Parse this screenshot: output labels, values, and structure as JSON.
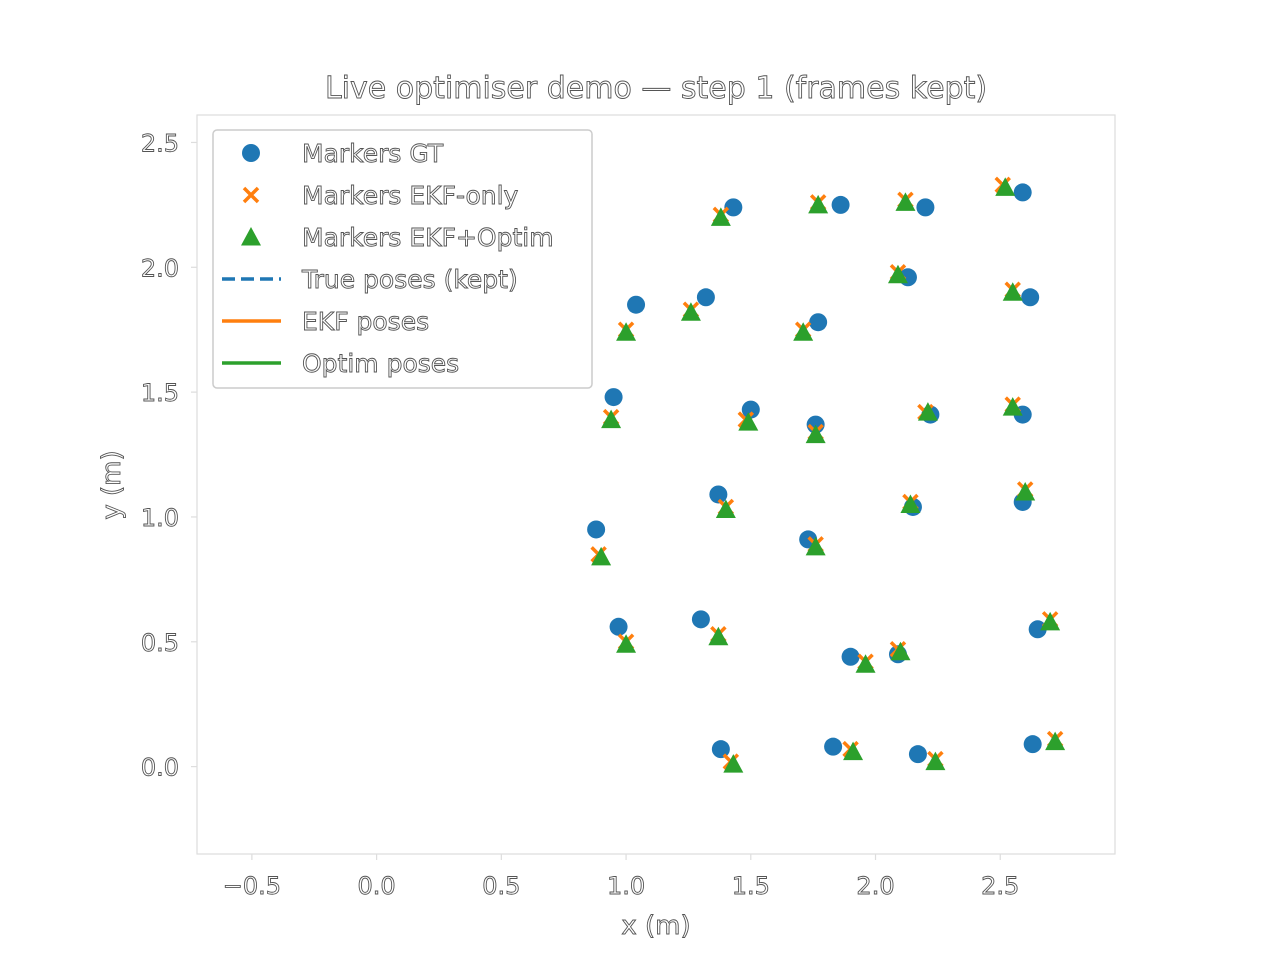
{
  "chart_data": {
    "type": "scatter",
    "title": "Live optimiser demo — step 1 (frames kept)",
    "xlabel": "x (m)",
    "ylabel": "y (m)",
    "xlim": [
      -0.72,
      2.96
    ],
    "ylim": [
      -0.35,
      2.61
    ],
    "xticks": [
      -0.5,
      0.0,
      0.5,
      1.0,
      1.5,
      2.0,
      2.5
    ],
    "xtick_labels": [
      "−0.5",
      "0.0",
      "0.5",
      "1.0",
      "1.5",
      "2.0",
      "2.5"
    ],
    "yticks": [
      0.0,
      0.5,
      1.0,
      1.5,
      2.0,
      2.5
    ],
    "ytick_labels": [
      "0.0",
      "0.5",
      "1.0",
      "1.5",
      "2.0",
      "2.5"
    ],
    "grid": false,
    "legend_position": "upper-left",
    "series": [
      {
        "name": "Markers GT",
        "marker": "circle",
        "color": "#1f77b4",
        "points": [
          [
            1.43,
            2.24
          ],
          [
            1.86,
            2.25
          ],
          [
            2.2,
            2.24
          ],
          [
            2.59,
            2.3
          ],
          [
            1.04,
            1.85
          ],
          [
            1.32,
            1.88
          ],
          [
            1.77,
            1.78
          ],
          [
            2.13,
            1.96
          ],
          [
            2.62,
            1.88
          ],
          [
            0.95,
            1.48
          ],
          [
            1.5,
            1.43
          ],
          [
            1.76,
            1.37
          ],
          [
            2.22,
            1.41
          ],
          [
            2.59,
            1.41
          ],
          [
            0.88,
            0.95
          ],
          [
            1.37,
            1.09
          ],
          [
            1.73,
            0.91
          ],
          [
            2.15,
            1.04
          ],
          [
            2.59,
            1.06
          ],
          [
            0.97,
            0.56
          ],
          [
            1.3,
            0.59
          ],
          [
            1.9,
            0.44
          ],
          [
            2.09,
            0.45
          ],
          [
            2.65,
            0.55
          ],
          [
            1.38,
            0.07
          ],
          [
            1.83,
            0.08
          ],
          [
            2.17,
            0.05
          ],
          [
            2.63,
            0.09
          ]
        ]
      },
      {
        "name": "Markers EKF-only",
        "marker": "x",
        "color": "#ff7f0e",
        "points": [
          [
            1.38,
            2.21
          ],
          [
            1.77,
            2.26
          ],
          [
            2.12,
            2.27
          ],
          [
            2.51,
            2.33
          ],
          [
            1.0,
            1.75
          ],
          [
            1.26,
            1.83
          ],
          [
            1.71,
            1.75
          ],
          [
            2.09,
            1.98
          ],
          [
            2.55,
            1.91
          ],
          [
            0.94,
            1.4
          ],
          [
            1.48,
            1.39
          ],
          [
            1.76,
            1.34
          ],
          [
            2.2,
            1.42
          ],
          [
            2.55,
            1.45
          ],
          [
            0.89,
            0.85
          ],
          [
            1.4,
            1.04
          ],
          [
            1.76,
            0.89
          ],
          [
            2.14,
            1.06
          ],
          [
            2.6,
            1.11
          ],
          [
            1.0,
            0.5
          ],
          [
            1.37,
            0.53
          ],
          [
            1.96,
            0.42
          ],
          [
            2.09,
            0.47
          ],
          [
            2.7,
            0.59
          ],
          [
            1.42,
            0.02
          ],
          [
            1.9,
            0.07
          ],
          [
            2.24,
            0.03
          ],
          [
            2.72,
            0.11
          ]
        ]
      },
      {
        "name": "Markers EKF+Optim",
        "marker": "triangle",
        "color": "#2ca02c",
        "points": [
          [
            1.38,
            2.2
          ],
          [
            1.77,
            2.25
          ],
          [
            2.12,
            2.26
          ],
          [
            2.52,
            2.32
          ],
          [
            1.0,
            1.74
          ],
          [
            1.26,
            1.82
          ],
          [
            1.71,
            1.74
          ],
          [
            2.09,
            1.97
          ],
          [
            2.55,
            1.9
          ],
          [
            0.94,
            1.39
          ],
          [
            1.49,
            1.38
          ],
          [
            1.76,
            1.33
          ],
          [
            2.21,
            1.42
          ],
          [
            2.55,
            1.44
          ],
          [
            0.9,
            0.84
          ],
          [
            1.4,
            1.03
          ],
          [
            1.76,
            0.88
          ],
          [
            2.14,
            1.05
          ],
          [
            2.6,
            1.1
          ],
          [
            1.0,
            0.49
          ],
          [
            1.37,
            0.52
          ],
          [
            1.96,
            0.41
          ],
          [
            2.1,
            0.46
          ],
          [
            2.7,
            0.58
          ],
          [
            1.43,
            0.01
          ],
          [
            1.91,
            0.06
          ],
          [
            2.24,
            0.02
          ],
          [
            2.72,
            0.1
          ]
        ]
      },
      {
        "name": "True poses (kept)",
        "style": "dashed-line",
        "color": "#1f77b4",
        "points": []
      },
      {
        "name": "EKF poses",
        "style": "solid-line",
        "color": "#ff7f0e",
        "points": []
      },
      {
        "name": "Optim poses",
        "style": "solid-line",
        "color": "#2ca02c",
        "points": []
      }
    ]
  }
}
